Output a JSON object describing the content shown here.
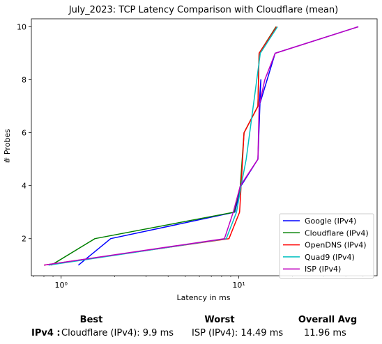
{
  "chart_data": {
    "type": "line",
    "title": "July_2023: TCP Latency Comparison with Cloudflare (mean)",
    "xlabel": "Latency in ms",
    "ylabel": "# Probes",
    "xscale": "log",
    "xlim": [
      0.68,
      60
    ],
    "ylim": [
      0.6,
      10.3
    ],
    "x_ticks": [
      1,
      10
    ],
    "x_tick_labels": [
      "10⁰",
      "10¹"
    ],
    "y_ticks": [
      2,
      4,
      6,
      8,
      10
    ],
    "grid": false,
    "legend_position": "lower-right",
    "series": [
      {
        "name": "Google (IPv4)",
        "color": "#0000ff",
        "x": [
          1.25,
          1.9,
          9.5,
          10.3,
          12.8,
          13.3,
          13.0,
          16.0,
          47.0
        ],
        "y": [
          1,
          2,
          3,
          4,
          5,
          8,
          7,
          9,
          10
        ]
      },
      {
        "name": "Cloudflare (IPv4)",
        "color": "#008000",
        "x": [
          0.88,
          1.55,
          9.4,
          10.2,
          10.7,
          12.8,
          13.0,
          16.2
        ],
        "y": [
          1,
          2,
          3,
          4,
          6,
          7,
          9,
          10
        ]
      },
      {
        "name": "OpenDNS (IPv4)",
        "color": "#ff0000",
        "x": [
          0.8,
          8.8,
          10.1,
          10.3,
          10.7,
          12.8,
          13.0,
          16.3
        ],
        "y": [
          1,
          2,
          3,
          4,
          6,
          7,
          9,
          10
        ]
      },
      {
        "name": "Quad9 (IPv4)",
        "color": "#00c0c0",
        "x": [
          0.85,
          8.5,
          9.7,
          10.3,
          11.0,
          13.2,
          16.5
        ],
        "y": [
          1,
          2,
          3,
          4,
          5,
          9,
          10
        ]
      },
      {
        "name": "ISP (IPv4)",
        "color": "#bf00bf",
        "x": [
          0.8,
          8.3,
          9.3,
          10.2,
          12.8,
          13.0,
          14.0,
          16.0,
          47.0
        ],
        "y": [
          1,
          2,
          3,
          4,
          5,
          7,
          8,
          9,
          10
        ]
      }
    ]
  },
  "summary": {
    "best_header": "Best",
    "worst_header": "Worst",
    "avg_header": "Overall Avg",
    "row_label": "IPv4 :",
    "best_value": "Cloudflare (IPv4): 9.9 ms",
    "worst_value": "ISP (IPv4): 14.49 ms",
    "avg_value": "11.96 ms"
  }
}
